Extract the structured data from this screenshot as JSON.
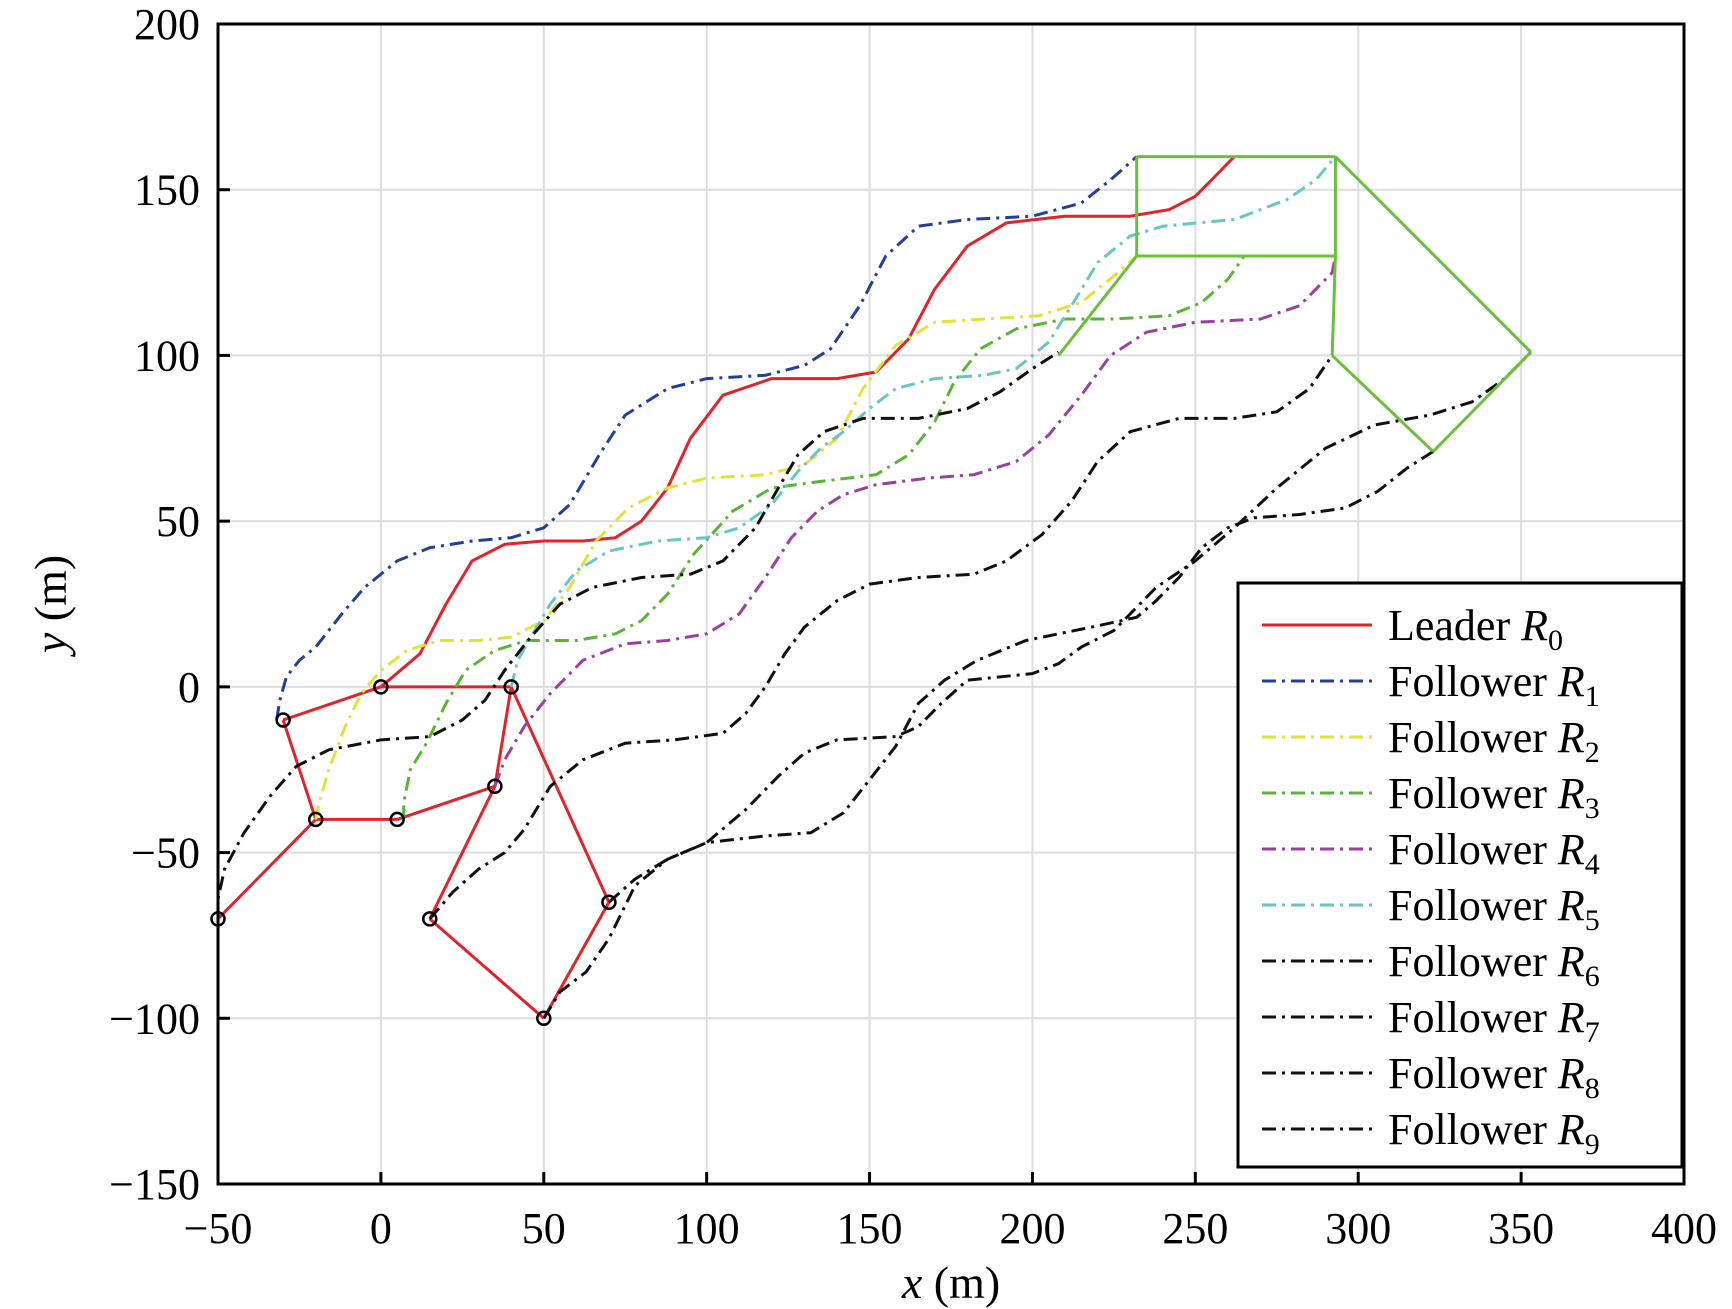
{
  "chart_data": {
    "type": "line",
    "xlabel": {
      "var": "x",
      "unit": " (m)"
    },
    "ylabel": {
      "var": "y",
      "unit": " (m)"
    },
    "xlim": [
      -50,
      400
    ],
    "ylim": [
      -150,
      200
    ],
    "xticks": [
      -50,
      0,
      50,
      100,
      150,
      200,
      250,
      300,
      350,
      400
    ],
    "yticks": [
      -150,
      -100,
      -50,
      0,
      50,
      100,
      150,
      200
    ],
    "xtick_labels": [
      "−50",
      "0",
      "50",
      "100",
      "150",
      "200",
      "250",
      "300",
      "350",
      "400"
    ],
    "ytick_labels": [
      "−150",
      "−100",
      "−50",
      "0",
      "50",
      "100",
      "150",
      "200"
    ],
    "grid": true,
    "legend_position": "bottom-right",
    "series": [
      {
        "name": "Leader",
        "sub": "0",
        "color": "#e0242a",
        "dash": "solid",
        "points": [
          [
            0,
            0
          ],
          [
            12,
            10
          ],
          [
            20,
            25
          ],
          [
            28,
            38
          ],
          [
            38,
            43
          ],
          [
            50,
            44
          ],
          [
            62,
            44
          ],
          [
            72,
            45
          ],
          [
            80,
            50
          ],
          [
            88,
            60
          ],
          [
            95,
            75
          ],
          [
            105,
            88
          ],
          [
            120,
            93
          ],
          [
            140,
            93
          ],
          [
            152,
            95
          ],
          [
            162,
            105
          ],
          [
            170,
            120
          ],
          [
            180,
            133
          ],
          [
            192,
            140
          ],
          [
            210,
            142
          ],
          [
            230,
            142
          ],
          [
            242,
            144
          ],
          [
            250,
            148
          ],
          [
            256,
            154
          ],
          [
            262,
            160
          ]
        ]
      },
      {
        "name": "Follower",
        "sub": "1",
        "color": "#223f99",
        "dash": "14,6,3,6",
        "points": [
          [
            -32,
            -10
          ],
          [
            -31,
            -4
          ],
          [
            -29,
            3
          ],
          [
            -25,
            8
          ],
          [
            -20,
            12
          ],
          [
            -12,
            22
          ],
          [
            -5,
            30
          ],
          [
            5,
            38
          ],
          [
            15,
            42
          ],
          [
            28,
            44
          ],
          [
            40,
            45
          ],
          [
            50,
            48
          ],
          [
            58,
            55
          ],
          [
            67,
            70
          ],
          [
            75,
            82
          ],
          [
            88,
            90
          ],
          [
            100,
            93
          ],
          [
            118,
            94
          ],
          [
            130,
            97
          ],
          [
            138,
            102
          ],
          [
            147,
            115
          ],
          [
            155,
            130
          ],
          [
            165,
            139
          ],
          [
            180,
            141
          ],
          [
            200,
            142
          ],
          [
            215,
            146
          ],
          [
            224,
            153
          ],
          [
            232,
            160
          ]
        ]
      },
      {
        "name": "Follower",
        "sub": "2",
        "color": "#e2e23a",
        "dash": "14,6,3,6",
        "points": [
          [
            -20,
            -40
          ],
          [
            -19,
            -35
          ],
          [
            -16,
            -25
          ],
          [
            -11,
            -12
          ],
          [
            -6,
            -2
          ],
          [
            0,
            5
          ],
          [
            8,
            11
          ],
          [
            18,
            14
          ],
          [
            30,
            14
          ],
          [
            40,
            15
          ],
          [
            50,
            20
          ],
          [
            58,
            30
          ],
          [
            66,
            44
          ],
          [
            76,
            54
          ],
          [
            88,
            60
          ],
          [
            100,
            63
          ],
          [
            118,
            64
          ],
          [
            130,
            67
          ],
          [
            140,
            75
          ],
          [
            148,
            90
          ],
          [
            158,
            103
          ],
          [
            170,
            110
          ],
          [
            185,
            111
          ],
          [
            202,
            112
          ],
          [
            215,
            116
          ],
          [
            225,
            124
          ],
          [
            232,
            130
          ]
        ]
      },
      {
        "name": "Follower",
        "sub": "3",
        "color": "#5bb534",
        "dash": "14,6,3,6",
        "points": [
          [
            7,
            -40
          ],
          [
            7,
            -35
          ],
          [
            9,
            -25
          ],
          [
            14,
            -17
          ],
          [
            20,
            -5
          ],
          [
            26,
            5
          ],
          [
            35,
            11
          ],
          [
            45,
            14
          ],
          [
            60,
            14
          ],
          [
            72,
            16
          ],
          [
            80,
            20
          ],
          [
            88,
            28
          ],
          [
            96,
            40
          ],
          [
            108,
            53
          ],
          [
            120,
            60
          ],
          [
            135,
            62
          ],
          [
            152,
            64
          ],
          [
            162,
            70
          ],
          [
            170,
            80
          ],
          [
            176,
            92
          ],
          [
            184,
            102
          ],
          [
            195,
            108
          ],
          [
            210,
            111
          ],
          [
            225,
            111
          ],
          [
            242,
            112
          ],
          [
            252,
            116
          ],
          [
            260,
            123
          ],
          [
            265,
            130
          ]
        ]
      },
      {
        "name": "Follower",
        "sub": "4",
        "color": "#9b3fa3",
        "dash": "14,6,3,6",
        "points": [
          [
            35,
            -30
          ],
          [
            38,
            -22
          ],
          [
            44,
            -12
          ],
          [
            52,
            -2
          ],
          [
            62,
            8
          ],
          [
            75,
            13
          ],
          [
            88,
            14
          ],
          [
            100,
            16
          ],
          [
            110,
            22
          ],
          [
            118,
            33
          ],
          [
            126,
            45
          ],
          [
            134,
            53
          ],
          [
            142,
            58
          ],
          [
            152,
            61
          ],
          [
            168,
            63
          ],
          [
            182,
            64
          ],
          [
            195,
            68
          ],
          [
            205,
            76
          ],
          [
            215,
            88
          ],
          [
            224,
            100
          ],
          [
            235,
            107
          ],
          [
            250,
            110
          ],
          [
            270,
            111
          ],
          [
            282,
            115
          ],
          [
            292,
            125
          ],
          [
            293,
            130
          ]
        ]
      },
      {
        "name": "Follower",
        "sub": "5",
        "color": "#69c6c6",
        "dash": "14,6,3,6",
        "points": [
          [
            40,
            0
          ],
          [
            42,
            8
          ],
          [
            46,
            15
          ],
          [
            52,
            25
          ],
          [
            60,
            35
          ],
          [
            70,
            41
          ],
          [
            85,
            44
          ],
          [
            100,
            45
          ],
          [
            110,
            48
          ],
          [
            120,
            55
          ],
          [
            128,
            65
          ],
          [
            135,
            72
          ],
          [
            142,
            77
          ],
          [
            150,
            84
          ],
          [
            158,
            90
          ],
          [
            170,
            93
          ],
          [
            185,
            94
          ],
          [
            195,
            96
          ],
          [
            205,
            104
          ],
          [
            212,
            115
          ],
          [
            220,
            128
          ],
          [
            230,
            136
          ],
          [
            240,
            139
          ],
          [
            262,
            141
          ],
          [
            278,
            147
          ],
          [
            287,
            153
          ],
          [
            293,
            160
          ]
        ]
      },
      {
        "name": "Follower",
        "sub": "6",
        "color": "#111111",
        "dash": "14,6,3,6",
        "points": [
          [
            -50,
            -70
          ],
          [
            -50,
            -64
          ],
          [
            -48,
            -55
          ],
          [
            -42,
            -44
          ],
          [
            -34,
            -33
          ],
          [
            -26,
            -24
          ],
          [
            -16,
            -19
          ],
          [
            0,
            -16
          ],
          [
            15,
            -15
          ],
          [
            25,
            -10
          ],
          [
            32,
            -4
          ],
          [
            38,
            5
          ],
          [
            46,
            15
          ],
          [
            55,
            25
          ],
          [
            65,
            30
          ],
          [
            80,
            33
          ],
          [
            95,
            34
          ],
          [
            105,
            38
          ],
          [
            115,
            48
          ],
          [
            122,
            60
          ],
          [
            128,
            70
          ],
          [
            136,
            77
          ],
          [
            148,
            81
          ],
          [
            165,
            81
          ],
          [
            180,
            84
          ],
          [
            190,
            89
          ],
          [
            200,
            96
          ],
          [
            208,
            101
          ]
        ]
      },
      {
        "name": "Follower",
        "sub": "7",
        "color": "#111111",
        "dash": "14,6,3,6",
        "points": [
          [
            15,
            -70
          ],
          [
            22,
            -62
          ],
          [
            30,
            -55
          ],
          [
            38,
            -50
          ],
          [
            44,
            -43
          ],
          [
            52,
            -30
          ],
          [
            62,
            -22
          ],
          [
            75,
            -17
          ],
          [
            90,
            -16
          ],
          [
            105,
            -14
          ],
          [
            112,
            -8
          ],
          [
            118,
            0
          ],
          [
            124,
            10
          ],
          [
            130,
            18
          ],
          [
            140,
            26
          ],
          [
            150,
            31
          ],
          [
            165,
            33
          ],
          [
            182,
            34
          ],
          [
            192,
            38
          ],
          [
            203,
            46
          ],
          [
            212,
            56
          ],
          [
            220,
            68
          ],
          [
            230,
            77
          ],
          [
            245,
            81
          ],
          [
            262,
            81
          ],
          [
            275,
            83
          ],
          [
            285,
            90
          ],
          [
            292,
            100
          ]
        ]
      },
      {
        "name": "Follower",
        "sub": "8",
        "color": "#111111",
        "dash": "14,6,3,6",
        "points": [
          [
            50,
            -100
          ],
          [
            55,
            -92
          ],
          [
            63,
            -86
          ],
          [
            70,
            -76
          ],
          [
            78,
            -60
          ],
          [
            88,
            -52
          ],
          [
            100,
            -47
          ],
          [
            118,
            -45
          ],
          [
            132,
            -44
          ],
          [
            142,
            -38
          ],
          [
            150,
            -28
          ],
          [
            158,
            -18
          ],
          [
            165,
            -5
          ],
          [
            173,
            2
          ],
          [
            183,
            8
          ],
          [
            198,
            14
          ],
          [
            218,
            18
          ],
          [
            232,
            21
          ],
          [
            238,
            26
          ],
          [
            245,
            33
          ],
          [
            252,
            42
          ],
          [
            260,
            48
          ],
          [
            268,
            51
          ],
          [
            282,
            52
          ],
          [
            296,
            54
          ],
          [
            306,
            59
          ],
          [
            315,
            66
          ],
          [
            323,
            71
          ]
        ]
      },
      {
        "name": "Follower",
        "sub": "9",
        "color": "#111111",
        "dash": "14,6,3,6",
        "points": [
          [
            70,
            -65
          ],
          [
            78,
            -58
          ],
          [
            88,
            -52
          ],
          [
            100,
            -47
          ],
          [
            112,
            -37
          ],
          [
            122,
            -27
          ],
          [
            130,
            -20
          ],
          [
            140,
            -16
          ],
          [
            158,
            -15
          ],
          [
            165,
            -12
          ],
          [
            172,
            -5
          ],
          [
            180,
            2
          ],
          [
            190,
            3
          ],
          [
            200,
            4
          ],
          [
            208,
            7
          ],
          [
            215,
            12
          ],
          [
            225,
            17
          ],
          [
            238,
            30
          ],
          [
            250,
            38
          ],
          [
            262,
            48
          ],
          [
            275,
            60
          ],
          [
            290,
            72
          ],
          [
            305,
            79
          ],
          [
            322,
            82
          ],
          [
            335,
            86
          ],
          [
            345,
            93
          ],
          [
            353,
            101
          ]
        ]
      }
    ],
    "initial_formation": {
      "color": "#e0242a",
      "points": [
        [
          0,
          0
        ],
        [
          -30,
          -10
        ],
        [
          -20,
          -40
        ],
        [
          5,
          -40
        ],
        [
          35,
          -30
        ],
        [
          40,
          0
        ],
        [
          70,
          -65
        ],
        [
          50,
          -100
        ],
        [
          15,
          -70
        ],
        [
          -50,
          -70
        ]
      ],
      "edges": [
        [
          0,
          1
        ],
        [
          0,
          5
        ],
        [
          1,
          2
        ],
        [
          2,
          3
        ],
        [
          2,
          9
        ],
        [
          3,
          4
        ],
        [
          4,
          5
        ],
        [
          4,
          8
        ],
        [
          5,
          6
        ],
        [
          6,
          7
        ],
        [
          7,
          8
        ]
      ]
    },
    "final_formation": {
      "color": "#6cbf3a",
      "points": [
        [
          262,
          160
        ],
        [
          232,
          160
        ],
        [
          232,
          130
        ],
        [
          265,
          130
        ],
        [
          293,
          130
        ],
        [
          293,
          160
        ],
        [
          208,
          100
        ],
        [
          292,
          100
        ],
        [
          323,
          71
        ],
        [
          353,
          101
        ]
      ],
      "edges": [
        [
          1,
          5
        ],
        [
          2,
          4
        ],
        [
          1,
          2
        ],
        [
          4,
          5
        ],
        [
          5,
          9
        ],
        [
          4,
          7
        ],
        [
          7,
          8
        ],
        [
          8,
          9
        ],
        [
          2,
          6
        ]
      ]
    }
  }
}
